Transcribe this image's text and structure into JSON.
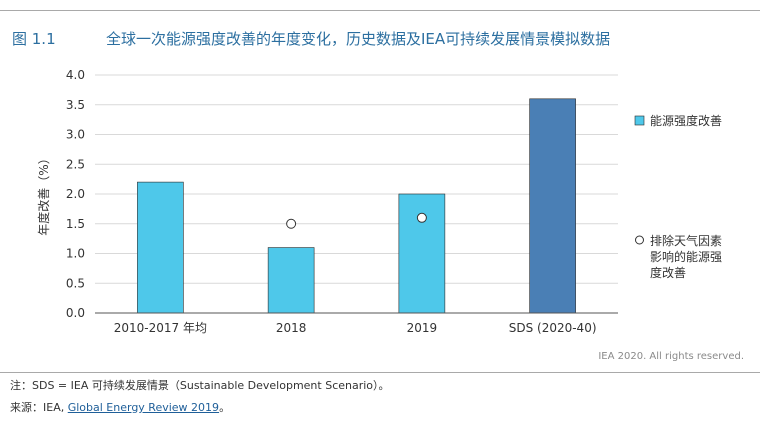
{
  "header": {
    "figure_number": "图 1.1",
    "title": "全球一次能源强度改善的年度变化，历史数据及IEA可持续发展情景模拟数据"
  },
  "footer": {
    "credit": "IEA 2020. All rights reserved.",
    "note": "注：SDS = IEA 可持续发展情景（Sustainable Development Scenario）。",
    "source_prefix": "来源：IEA, ",
    "source_link": "Global Energy Review 2019",
    "source_suffix": "。"
  },
  "chart_data": {
    "type": "bar",
    "categories": [
      "2010-2017 年均",
      "2018",
      "2019",
      "SDS (2020-40)"
    ],
    "series": [
      {
        "name": "能源强度改善",
        "values": [
          2.2,
          1.1,
          2.0,
          3.6
        ],
        "colors": [
          "#4ec8ea",
          "#4ec8ea",
          "#4ec8ea",
          "#4a7fb5"
        ]
      },
      {
        "name": "排除天气因素影响的能源强度改善",
        "marker": "circle-open",
        "values": [
          null,
          1.5,
          1.6,
          null
        ]
      }
    ],
    "ylabel": "年度改善（%）",
    "ylim": [
      0,
      4.0
    ],
    "yticks": [
      "0.0",
      "0.5",
      "1.0",
      "1.5",
      "2.0",
      "2.5",
      "3.0",
      "3.5",
      "4.0"
    ],
    "grid": true,
    "legend_position": "right",
    "legend_lines": [
      [
        "能源强度改善"
      ],
      [
        "排除天气因素",
        "影响的能源强",
        "度改善"
      ]
    ]
  }
}
